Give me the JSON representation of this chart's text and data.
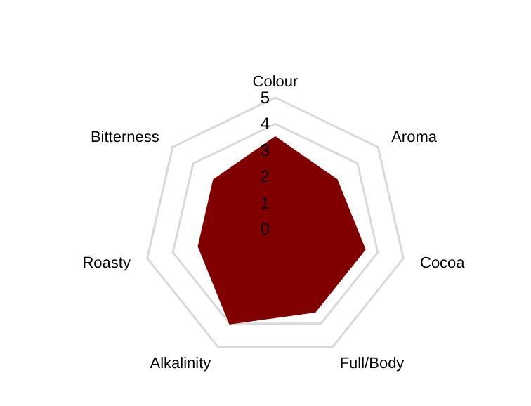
{
  "chart_data": {
    "type": "radar",
    "categories": [
      "Colour",
      "Aroma",
      "Cocoa",
      "Full/Body",
      "Alkalinity",
      "Roasty",
      "Bitterness"
    ],
    "series": [
      {
        "color": "#800000",
        "values": [
          3.5,
          3,
          3.5,
          3.5,
          4,
          3,
          3
        ]
      }
    ],
    "ylim": [
      0,
      5
    ],
    "yticks": [
      0,
      1,
      2,
      3,
      4,
      5
    ],
    "grid": true
  }
}
